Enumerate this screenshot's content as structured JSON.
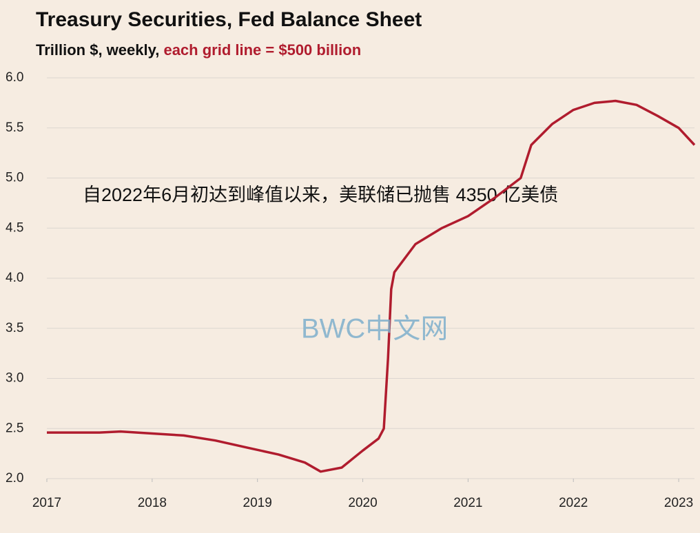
{
  "chart_data": {
    "type": "line",
    "title": "Treasury  Securities,  Fed Balance  Sheet",
    "subtitle": "Trillion $, weekly, ",
    "subtitle_highlight": "each grid line = $500 billion",
    "annotation": "自2022年6月初达到峰值以来，美联储已抛售 4350 亿美债",
    "watermark": "BWC中文网",
    "xlim": [
      2017,
      2023.15
    ],
    "xticks": [
      2017,
      2018,
      2019,
      2020,
      2021,
      2022,
      2023
    ],
    "ylim": [
      2,
      6
    ],
    "yticks": [
      {
        "value": 2,
        "label": "2.0"
      },
      2.5,
      {
        "value": 3,
        "label": "3.0"
      },
      3.5,
      {
        "value": 4,
        "label": "4.0"
      },
      4.5,
      {
        "value": 5,
        "label": "5.0"
      },
      5.5,
      {
        "value": 6,
        "label": "6.0"
      }
    ],
    "grid": true,
    "x": [
      2017.0,
      2017.5,
      2017.7,
      2018.0,
      2018.3,
      2018.6,
      2018.9,
      2019.2,
      2019.45,
      2019.6,
      2019.8,
      2020.0,
      2020.15,
      2020.2,
      2020.24,
      2020.27,
      2020.3,
      2020.5,
      2020.75,
      2021.0,
      2021.25,
      2021.5,
      2021.6,
      2021.8,
      2022.0,
      2022.2,
      2022.4,
      2022.6,
      2022.8,
      2023.0,
      2023.15
    ],
    "series": [
      {
        "name": "Treasury Securities",
        "color": "#b01c2e",
        "values": [
          2.46,
          2.46,
          2.47,
          2.45,
          2.43,
          2.38,
          2.31,
          2.24,
          2.16,
          2.07,
          2.11,
          2.28,
          2.4,
          2.5,
          3.2,
          3.89,
          4.06,
          4.34,
          4.5,
          4.62,
          4.8,
          5.0,
          5.33,
          5.54,
          5.68,
          5.75,
          5.77,
          5.73,
          5.62,
          5.5,
          5.33
        ]
      }
    ]
  }
}
